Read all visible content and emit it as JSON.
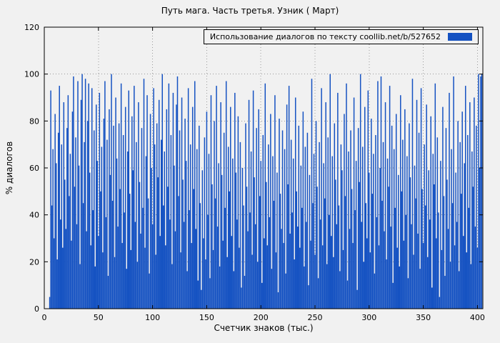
{
  "chart_data": {
    "type": "bar",
    "title": "Путь мага. Часть третья. Узник ( Март)",
    "xlabel": "Счетчик знаков (тыс.)",
    "ylabel": "% диалогов",
    "legend_label": "Использование диалогов по тексту  coollib.net/b/527652",
    "legend_position": "top-right",
    "grid": true,
    "color": "#1552c2",
    "xlim": [
      0,
      405
    ],
    "ylim": [
      0,
      120
    ],
    "xticks": [
      0,
      50,
      100,
      150,
      200,
      250,
      300,
      350,
      400
    ],
    "yticks": [
      0,
      20,
      40,
      60,
      80,
      100,
      120
    ],
    "x_start": 5,
    "x_step": 1,
    "values": [
      5,
      93,
      44,
      68,
      30,
      83,
      62,
      21,
      75,
      95,
      38,
      70,
      26,
      88,
      55,
      34,
      77,
      91,
      48,
      66,
      29,
      84,
      99,
      52,
      73,
      36,
      97,
      61,
      19,
      89,
      100,
      45,
      71,
      98,
      33,
      80,
      96,
      58,
      27,
      94,
      42,
      76,
      18,
      87,
      63,
      31,
      92,
      50,
      69,
      24,
      81,
      97,
      39,
      72,
      14,
      85,
      57,
      100,
      46,
      78,
      22,
      90,
      64,
      35,
      79,
      51,
      96,
      28,
      74,
      41,
      86,
      17,
      67,
      93,
      49,
      25,
      82,
      59,
      95,
      37,
      71,
      20,
      88,
      54,
      32,
      77,
      43,
      98,
      26,
      65,
      91,
      47,
      15,
      83,
      60,
      36,
      94,
      70,
      23,
      79,
      56,
      89,
      31,
      72,
      100,
      44,
      67,
      27,
      85,
      52,
      96,
      38,
      74,
      19,
      92,
      61,
      33,
      87,
      99,
      48,
      76,
      24,
      90,
      55,
      37,
      81,
      63,
      16,
      94,
      42,
      70,
      28,
      86,
      51,
      97,
      34,
      68,
      12,
      78,
      45,
      8,
      59,
      30,
      73,
      21,
      84,
      40,
      66,
      13,
      91,
      53,
      25,
      80,
      47,
      95,
      35,
      62,
      18,
      88,
      57,
      29,
      75,
      43,
      97,
      22,
      69,
      50,
      86,
      31,
      64,
      16,
      92,
      58,
      38,
      82,
      26,
      71,
      9,
      60,
      44,
      14,
      79,
      52,
      33,
      89,
      41,
      67,
      23,
      93,
      56,
      36,
      77,
      20,
      85,
      48,
      63,
      11,
      74,
      30,
      96,
      54,
      27,
      70,
      39,
      83,
      17,
      65,
      46,
      91,
      24,
      58,
      7,
      81,
      49,
      34,
      76,
      28,
      68,
      15,
      87,
      53,
      95,
      32,
      72,
      41,
      64,
      21,
      90,
      50,
      35,
      78,
      26,
      61,
      43,
      84,
      18,
      69,
      37,
      75,
      10,
      57,
      29,
      98,
      45,
      66,
      23,
      80,
      52,
      13,
      71,
      38,
      94,
      27,
      62,
      47,
      88,
      19,
      73,
      40,
      100,
      31,
      65,
      22,
      79,
      55,
      36,
      92,
      44,
      16,
      70,
      59,
      25,
      83,
      48,
      96,
      12,
      67,
      34,
      76,
      51,
      28,
      90,
      42,
      63,
      8,
      77,
      54,
      100,
      37,
      69,
      20,
      86,
      45,
      30,
      93,
      58,
      24,
      81,
      49,
      66,
      15,
      74,
      39,
      97,
      27,
      60,
      99,
      46,
      71,
      33,
      88,
      21,
      64,
      52,
      95,
      35,
      78,
      11,
      68,
      43,
      83,
      26,
      57,
      18,
      91,
      50,
      72,
      29,
      85,
      40,
      65,
      13,
      79,
      56,
      36,
      98,
      23,
      61,
      47,
      89,
      32,
      75,
      17,
      94,
      51,
      28,
      70,
      44,
      87,
      22,
      59,
      38,
      82,
      9,
      66,
      53,
      96,
      30,
      73,
      41,
      5,
      63,
      25,
      86,
      48,
      14,
      77,
      55,
      34,
      92,
      20,
      68,
      45,
      99,
      27,
      58,
      37,
      80,
      16,
      71,
      49,
      84,
      31,
      62,
      95,
      24,
      74,
      43,
      88,
      19,
      67,
      52,
      90,
      35,
      78,
      26,
      100,
      60,
      99,
      100
    ]
  }
}
